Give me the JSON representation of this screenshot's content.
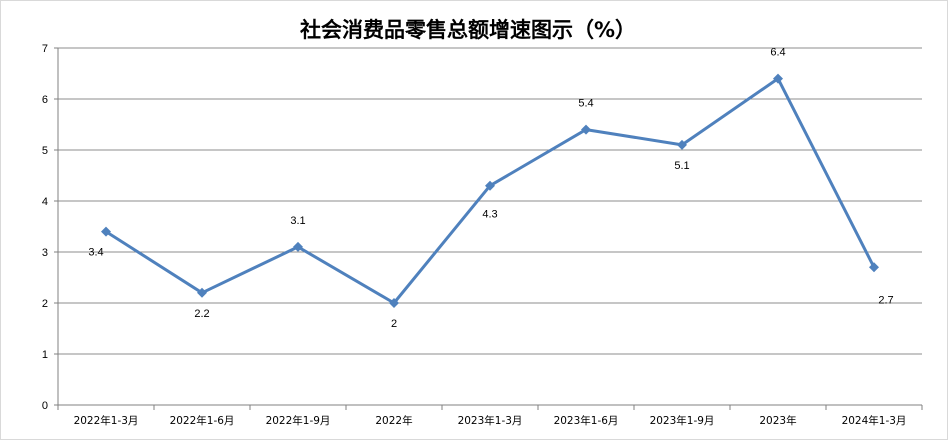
{
  "chart_data": {
    "type": "line",
    "title": "社会消费品零售总额增速图示（%）",
    "categories": [
      "2022年1-3月",
      "2022年1-6月",
      "2022年1-9月",
      "2022年",
      "2023年1-3月",
      "2023年1-6月",
      "2023年1-9月",
      "2023年",
      "2024年1-3月"
    ],
    "series": [
      {
        "values": [
          3.4,
          2.2,
          3.1,
          2,
          4.3,
          5.4,
          5.1,
          6.4,
          2.7
        ]
      }
    ],
    "data_labels": [
      "3.4",
      "2.2",
      "3.1",
      "2",
      "4.3",
      "5.4",
      "5.1",
      "6.4",
      "2.7"
    ],
    "y_ticks": [
      "0",
      "1",
      "2",
      "3",
      "4",
      "5",
      "6",
      "7"
    ],
    "ylim": [
      0,
      7
    ],
    "grid": true,
    "legend": "none",
    "colors": {
      "line": "#4F81BD",
      "grid": "#8C8C8C",
      "axis": "#808080",
      "frame": "#D9D9D9"
    }
  }
}
